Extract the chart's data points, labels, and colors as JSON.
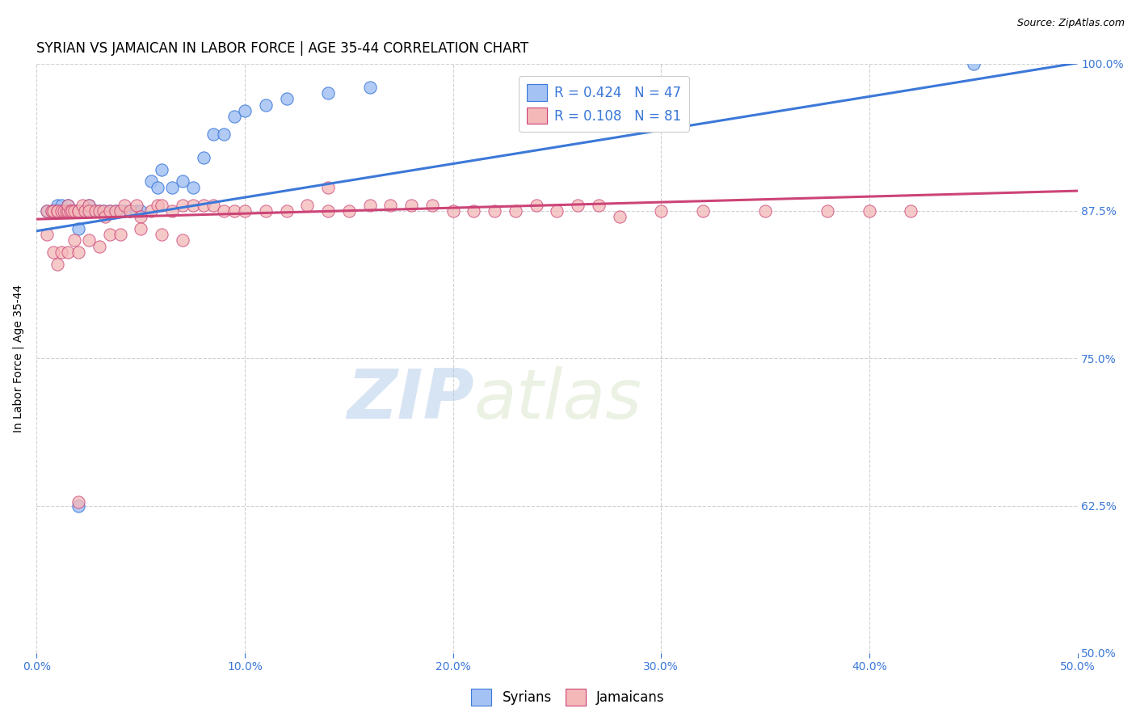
{
  "title": "SYRIAN VS JAMAICAN IN LABOR FORCE | AGE 35-44 CORRELATION CHART",
  "source": "Source: ZipAtlas.com",
  "ylabel": "In Labor Force | Age 35-44",
  "xlabel_ticks": [
    "0.0%",
    "10.0%",
    "20.0%",
    "30.0%",
    "40.0%",
    "50.0%"
  ],
  "xlabel_vals": [
    0.0,
    0.1,
    0.2,
    0.3,
    0.4,
    0.5
  ],
  "ylabel_ticks_labels": [
    "50.0%",
    "62.5%",
    "75.0%",
    "87.5%",
    "100.0%"
  ],
  "ylabel_ticks_vals": [
    0.5,
    0.625,
    0.75,
    0.875,
    1.0
  ],
  "xmin": 0.0,
  "xmax": 0.5,
  "ymin": 0.5,
  "ymax": 1.0,
  "blue_R": 0.424,
  "blue_N": 47,
  "pink_R": 0.108,
  "pink_N": 81,
  "blue_color": "#a4c2f4",
  "pink_color": "#f4b8b8",
  "blue_line_color": "#3c78d8",
  "pink_line_color": "#cc4477",
  "legend_text_color": "#3c78d8",
  "watermark_zip": "ZIP",
  "watermark_atlas": "atlas",
  "background_color": "#ffffff",
  "grid_color": "#cccccc",
  "axis_label_color": "#3c78d8",
  "title_fontsize": 12,
  "axis_fontsize": 10,
  "legend_fontsize": 12,
  "blue_line_intercept": 0.858,
  "blue_line_slope": 0.285,
  "pink_line_intercept": 0.868,
  "pink_line_slope": 0.048,
  "blue_scatter_x": [
    0.005,
    0.007,
    0.008,
    0.008,
    0.01,
    0.01,
    0.01,
    0.012,
    0.012,
    0.013,
    0.014,
    0.015,
    0.015,
    0.016,
    0.017,
    0.018,
    0.02,
    0.022,
    0.023,
    0.025,
    0.028,
    0.03,
    0.032,
    0.035,
    0.038,
    0.04,
    0.042,
    0.045,
    0.048,
    0.05,
    0.055,
    0.058,
    0.06,
    0.065,
    0.07,
    0.075,
    0.08,
    0.085,
    0.09,
    0.095,
    0.1,
    0.11,
    0.12,
    0.14,
    0.16,
    0.45,
    0.02
  ],
  "blue_scatter_y": [
    0.875,
    0.875,
    0.875,
    0.875,
    0.875,
    0.88,
    0.875,
    0.875,
    0.88,
    0.875,
    0.875,
    0.875,
    0.88,
    0.875,
    0.875,
    0.875,
    0.86,
    0.875,
    0.875,
    0.88,
    0.875,
    0.875,
    0.875,
    0.875,
    0.875,
    0.875,
    0.875,
    0.875,
    0.875,
    0.875,
    0.9,
    0.895,
    0.91,
    0.895,
    0.9,
    0.895,
    0.92,
    0.94,
    0.94,
    0.955,
    0.96,
    0.965,
    0.97,
    0.975,
    0.98,
    1.0,
    0.625
  ],
  "pink_scatter_x": [
    0.005,
    0.007,
    0.008,
    0.01,
    0.01,
    0.012,
    0.013,
    0.014,
    0.015,
    0.015,
    0.016,
    0.017,
    0.018,
    0.02,
    0.02,
    0.022,
    0.023,
    0.025,
    0.025,
    0.028,
    0.03,
    0.032,
    0.033,
    0.035,
    0.038,
    0.04,
    0.042,
    0.045,
    0.048,
    0.05,
    0.055,
    0.058,
    0.06,
    0.065,
    0.07,
    0.075,
    0.08,
    0.085,
    0.09,
    0.095,
    0.1,
    0.11,
    0.12,
    0.13,
    0.14,
    0.15,
    0.16,
    0.17,
    0.18,
    0.19,
    0.2,
    0.21,
    0.22,
    0.23,
    0.24,
    0.25,
    0.26,
    0.27,
    0.28,
    0.3,
    0.32,
    0.35,
    0.38,
    0.4,
    0.42,
    0.005,
    0.008,
    0.01,
    0.012,
    0.015,
    0.018,
    0.02,
    0.025,
    0.03,
    0.035,
    0.04,
    0.05,
    0.06,
    0.07,
    0.14,
    0.02
  ],
  "pink_scatter_y": [
    0.875,
    0.875,
    0.875,
    0.875,
    0.875,
    0.875,
    0.875,
    0.875,
    0.875,
    0.88,
    0.875,
    0.875,
    0.875,
    0.875,
    0.875,
    0.88,
    0.875,
    0.88,
    0.875,
    0.875,
    0.875,
    0.875,
    0.87,
    0.875,
    0.875,
    0.875,
    0.88,
    0.875,
    0.88,
    0.87,
    0.875,
    0.88,
    0.88,
    0.875,
    0.88,
    0.88,
    0.88,
    0.88,
    0.875,
    0.875,
    0.875,
    0.875,
    0.875,
    0.88,
    0.875,
    0.875,
    0.88,
    0.88,
    0.88,
    0.88,
    0.875,
    0.875,
    0.875,
    0.875,
    0.88,
    0.875,
    0.88,
    0.88,
    0.87,
    0.875,
    0.875,
    0.875,
    0.875,
    0.875,
    0.875,
    0.855,
    0.84,
    0.83,
    0.84,
    0.84,
    0.85,
    0.84,
    0.85,
    0.845,
    0.855,
    0.855,
    0.86,
    0.855,
    0.85,
    0.895,
    0.628
  ]
}
